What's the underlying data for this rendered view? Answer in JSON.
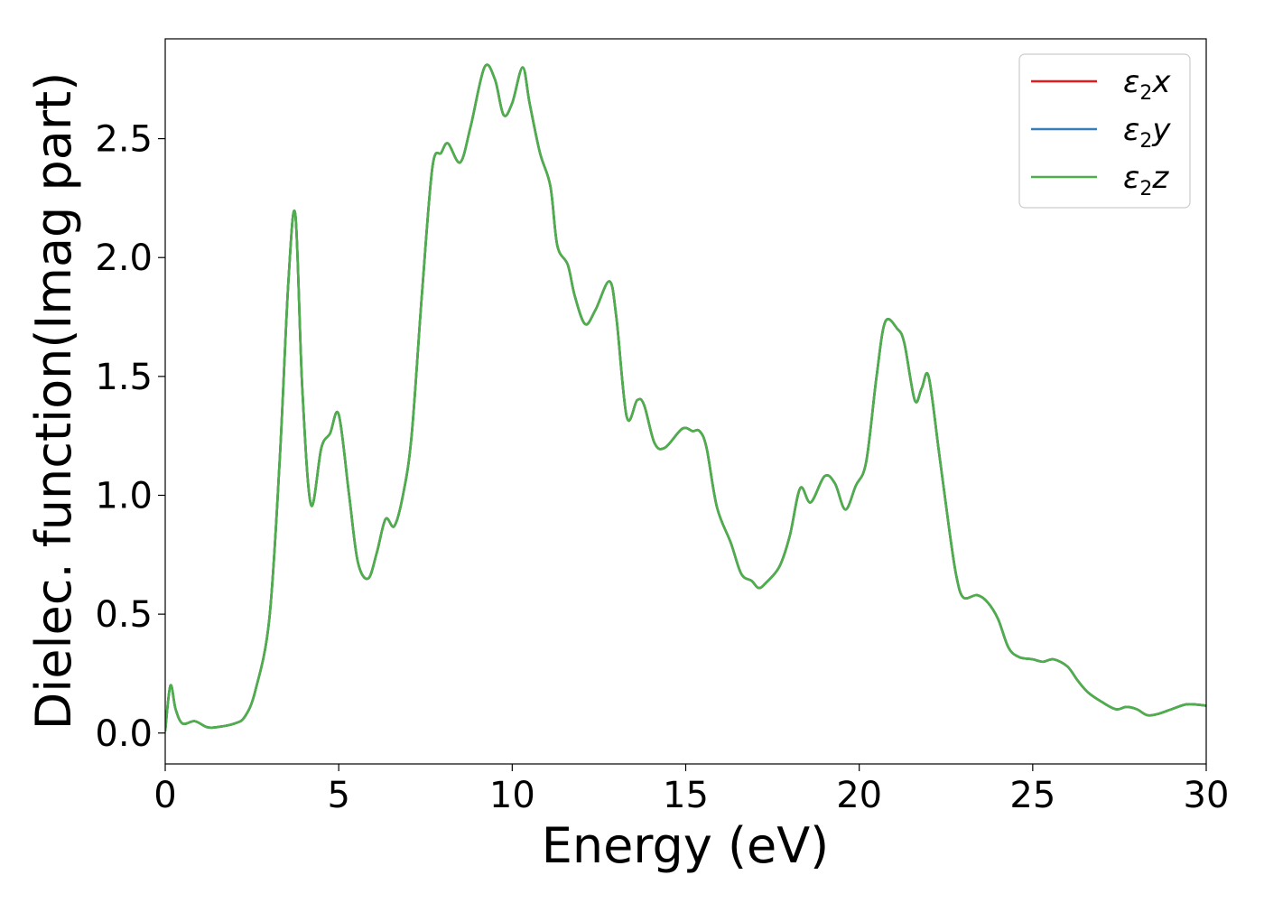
{
  "chart_data": {
    "type": "line",
    "title": "",
    "xlabel": "Energy (eV)",
    "ylabel": "Dielec. function(Imag part)",
    "xlim": [
      0,
      30
    ],
    "ylim": [
      -0.13,
      2.92
    ],
    "xticks": [
      0,
      5,
      10,
      15,
      20,
      25,
      30
    ],
    "xtick_labels": [
      "0",
      "5",
      "10",
      "15",
      "20",
      "25",
      "30"
    ],
    "yticks": [
      0.0,
      0.5,
      1.0,
      1.5,
      2.0,
      2.5
    ],
    "ytick_labels": [
      "0.0",
      "0.5",
      "1.0",
      "1.5",
      "2.0",
      "2.5"
    ],
    "grid": false,
    "legend_position": "top-right",
    "series": [
      {
        "name": "ε2x",
        "legend_symbol": "ε",
        "legend_subscript": "2",
        "legend_suffix": "x",
        "color": "#e41a1c"
      },
      {
        "name": "ε2y",
        "legend_symbol": "ε",
        "legend_subscript": "2",
        "legend_suffix": "y",
        "color": "#377eb8"
      },
      {
        "name": "ε2z",
        "legend_symbol": "ε",
        "legend_subscript": "2",
        "legend_suffix": "z",
        "color": "#4daf4a"
      }
    ],
    "x": [
      0,
      0.15,
      0.3,
      0.5,
      0.85,
      1.2,
      1.5,
      2.0,
      2.3,
      2.6,
      3.0,
      3.3,
      3.55,
      3.75,
      3.95,
      4.2,
      4.5,
      4.75,
      5.0,
      5.3,
      5.55,
      5.85,
      6.1,
      6.35,
      6.6,
      6.85,
      7.1,
      7.4,
      7.7,
      7.95,
      8.15,
      8.5,
      8.8,
      9.2,
      9.5,
      9.75,
      10.0,
      10.3,
      10.5,
      10.8,
      11.1,
      11.3,
      11.6,
      11.8,
      12.1,
      12.4,
      12.8,
      13.0,
      13.3,
      13.6,
      13.8,
      14.1,
      14.4,
      14.9,
      15.2,
      15.4,
      15.6,
      15.9,
      16.3,
      16.6,
      16.9,
      17.1,
      17.3,
      17.7,
      18.0,
      18.3,
      18.6,
      19.0,
      19.3,
      19.6,
      19.9,
      20.2,
      20.5,
      20.75,
      21.1,
      21.3,
      21.6,
      21.8,
      22.0,
      22.3,
      22.6,
      22.8,
      23.0,
      23.4,
      23.7,
      24.0,
      24.3,
      24.6,
      25.0,
      25.3,
      25.6,
      26.0,
      26.3,
      26.6,
      27.0,
      27.4,
      27.7,
      28.0,
      28.3,
      28.6,
      29.0,
      29.4,
      29.7,
      30.0
    ],
    "y": [
      0.01,
      0.2,
      0.1,
      0.04,
      0.05,
      0.025,
      0.025,
      0.04,
      0.07,
      0.18,
      0.48,
      1.15,
      1.9,
      2.18,
      1.45,
      0.96,
      1.2,
      1.26,
      1.34,
      1.0,
      0.72,
      0.65,
      0.76,
      0.9,
      0.87,
      1.0,
      1.25,
      1.85,
      2.38,
      2.44,
      2.48,
      2.4,
      2.55,
      2.8,
      2.75,
      2.6,
      2.65,
      2.8,
      2.65,
      2.44,
      2.3,
      2.05,
      1.97,
      1.84,
      1.72,
      1.78,
      1.9,
      1.75,
      1.33,
      1.4,
      1.38,
      1.22,
      1.2,
      1.28,
      1.27,
      1.27,
      1.2,
      0.95,
      0.8,
      0.67,
      0.64,
      0.61,
      0.63,
      0.7,
      0.83,
      1.03,
      0.97,
      1.08,
      1.05,
      0.94,
      1.04,
      1.14,
      1.5,
      1.73,
      1.7,
      1.64,
      1.4,
      1.45,
      1.5,
      1.18,
      0.85,
      0.66,
      0.57,
      0.58,
      0.55,
      0.48,
      0.36,
      0.32,
      0.31,
      0.3,
      0.31,
      0.28,
      0.22,
      0.17,
      0.13,
      0.1,
      0.11,
      0.1,
      0.075,
      0.08,
      0.1,
      0.12,
      0.12,
      0.115
    ]
  }
}
